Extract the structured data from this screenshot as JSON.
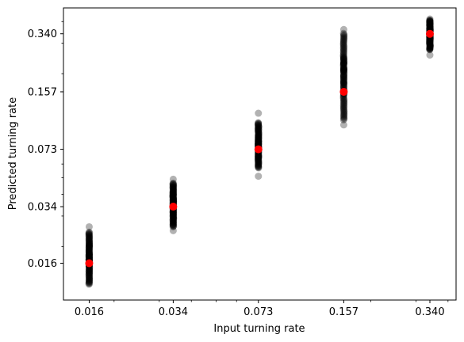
{
  "chart_data": {
    "type": "scatter",
    "title": "",
    "xlabel": "Input turning rate",
    "ylabel": "Predicted turning rate",
    "xscale": "log",
    "yscale": "log",
    "xlim": [
      0.0127,
      0.43
    ],
    "ylim": [
      0.0098,
      0.48
    ],
    "xticks": [
      0.016,
      0.034,
      0.073,
      0.157,
      0.34
    ],
    "xtick_labels": [
      "0.016",
      "0.034",
      "0.073",
      "0.157",
      "0.340"
    ],
    "yticks": [
      0.016,
      0.034,
      0.073,
      0.157,
      0.34
    ],
    "ytick_labels": [
      "0.016",
      "0.034",
      "0.073",
      "0.157",
      "0.340"
    ],
    "grid": false,
    "series": [
      {
        "kind": "per-trial predictions",
        "color": "#000000",
        "opacity": 0.3,
        "groups": [
          {
            "x": 0.016,
            "y_range": [
              0.0121,
              0.0242
            ],
            "outliers": [
              0.026
            ]
          },
          {
            "x": 0.034,
            "y_range": [
              0.026,
              0.0465
            ],
            "outliers": [
              0.0247,
              0.049
            ]
          },
          {
            "x": 0.073,
            "y_range": [
              0.057,
              0.104
            ],
            "outliers": [
              0.051,
              0.118
            ]
          },
          {
            "x": 0.157,
            "y_range": [
              0.108,
              0.342
            ],
            "outliers": [
              0.101,
              0.36
            ]
          },
          {
            "x": 0.34,
            "y_range": [
              0.275,
              0.408
            ],
            "outliers": [
              0.256,
              0.414
            ]
          }
        ]
      },
      {
        "kind": "mean prediction",
        "color": "#ff0000",
        "points": [
          {
            "x": 0.016,
            "y": 0.016
          },
          {
            "x": 0.034,
            "y": 0.034
          },
          {
            "x": 0.073,
            "y": 0.073
          },
          {
            "x": 0.157,
            "y": 0.157
          },
          {
            "x": 0.34,
            "y": 0.34
          }
        ]
      }
    ]
  }
}
